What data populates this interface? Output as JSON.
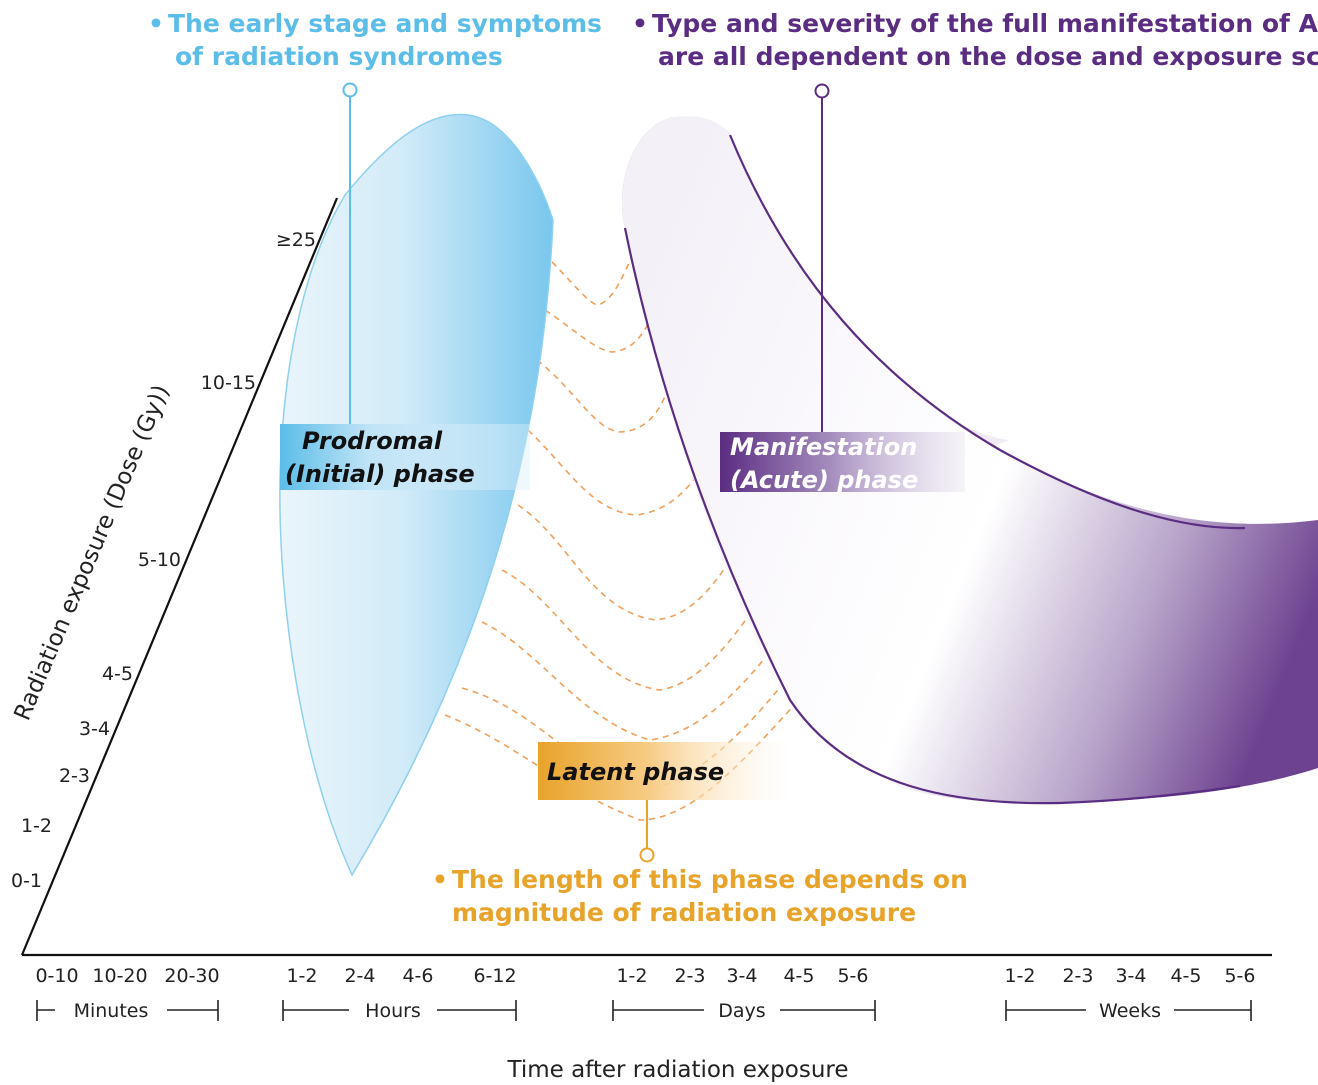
{
  "callouts": {
    "early_stage": [
      "The early stage and symptoms",
      "of radiation syndromes"
    ],
    "type_severity": [
      "Type and severity of the full manifestation of ARS,",
      "are all dependent on the dose and exposure scenario"
    ],
    "latent_length": [
      "The length of this phase depends on",
      "magnitude of radiation exposure"
    ]
  },
  "phases": {
    "prodromal": [
      "Prodromal",
      "(Initial) phase"
    ],
    "manifestation": [
      "Manifestation",
      "(Acute) phase"
    ],
    "latent": "Latent phase"
  },
  "y_axis": {
    "title": "Radiation exposure (Dose (Gy))",
    "ticks": [
      "0-1",
      "1-2",
      "2-3",
      "3-4",
      "4-5",
      "5-10",
      "10-15",
      "≥25"
    ]
  },
  "x_axis": {
    "title": "Time after radiation exposure",
    "groups": [
      {
        "name": "Minutes",
        "ticks": [
          "0-10",
          "10-20",
          "20-30"
        ]
      },
      {
        "name": "Hours",
        "ticks": [
          "1-2",
          "2-4",
          "4-6",
          "6-12"
        ]
      },
      {
        "name": "Days",
        "ticks": [
          "1-2",
          "2-3",
          "3-4",
          "4-5",
          "5-6"
        ]
      },
      {
        "name": "Weeks",
        "ticks": [
          "1-2",
          "2-3",
          "3-4",
          "4-5",
          "5-6"
        ]
      }
    ]
  },
  "colors": {
    "prodromal": "#5bbde8",
    "manifestation": "#5b2d82",
    "latent": "#e8a32a",
    "dashed_lines": "#f0a05a"
  }
}
